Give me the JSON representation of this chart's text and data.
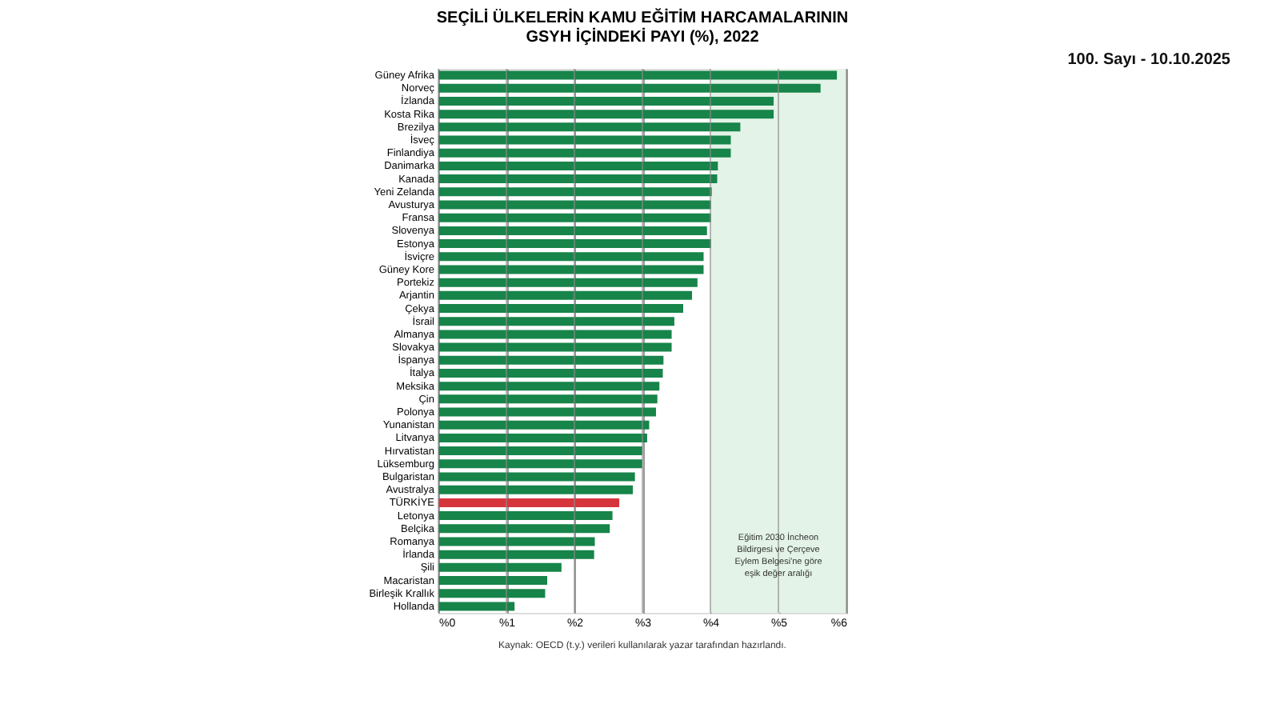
{
  "chart_data": {
    "type": "bar",
    "orientation": "horizontal",
    "title": [
      "SEÇİLİ ÜLKELERİN KAMU EĞİTİM HARCAMALARININ",
      "GSYH İÇİNDEKİ PAYI (%), 2022"
    ],
    "categories": [
      "Güney Afrika",
      "Norveç",
      "İzlanda",
      "Kosta Rika",
      "Brezilya",
      "İsveç",
      "Finlandiya",
      "Danimarka",
      "Kanada",
      "Yeni Zelanda",
      "Avusturya",
      "Fransa",
      "Slovenya",
      "Estonya",
      "İsviçre",
      "Güney Kore",
      "Portekiz",
      "Arjantin",
      "Çekya",
      "İsrail",
      "Almanya",
      "Slovakya",
      "İspanya",
      "İtalya",
      "Meksika",
      "Çin",
      "Polonya",
      "Yunanistan",
      "Litvanya",
      "Hırvatistan",
      "Lüksemburg",
      "Bulgaristan",
      "Avustralya",
      "TÜRKİYE",
      "Letonya",
      "Belçika",
      "Romanya",
      "İrlanda",
      "Şili",
      "Macaristan",
      "Birleşik Krallık",
      "Hollanda"
    ],
    "values": [
      5.86,
      5.62,
      4.93,
      4.93,
      4.44,
      4.3,
      4.3,
      4.11,
      4.1,
      4.02,
      4.01,
      4.01,
      3.95,
      4.01,
      3.9,
      3.9,
      3.81,
      3.73,
      3.6,
      3.47,
      3.43,
      3.43,
      3.31,
      3.3,
      3.25,
      3.22,
      3.2,
      3.1,
      3.07,
      3.0,
      3.0,
      2.89,
      2.86,
      2.66,
      2.56,
      2.52,
      2.3,
      2.29,
      1.81,
      1.6,
      1.57,
      1.12
    ],
    "colors": [
      "#17844a",
      "#17844a",
      "#17844a",
      "#17844a",
      "#17844a",
      "#17844a",
      "#17844a",
      "#17844a",
      "#17844a",
      "#17844a",
      "#17844a",
      "#17844a",
      "#17844a",
      "#17844a",
      "#17844a",
      "#17844a",
      "#17844a",
      "#17844a",
      "#17844a",
      "#17844a",
      "#17844a",
      "#17844a",
      "#17844a",
      "#17844a",
      "#17844a",
      "#17844a",
      "#17844a",
      "#17844a",
      "#17844a",
      "#17844a",
      "#17844a",
      "#17844a",
      "#17844a",
      "#d7353c",
      "#17844a",
      "#17844a",
      "#17844a",
      "#17844a",
      "#17844a",
      "#17844a",
      "#17844a",
      "#17844a"
    ],
    "xlim": [
      0,
      6
    ],
    "xticks": [
      {
        "value": 0,
        "label": "%0"
      },
      {
        "value": 1,
        "label": "%1"
      },
      {
        "value": 2,
        "label": "%2"
      },
      {
        "value": 3,
        "label": "%3"
      },
      {
        "value": 4,
        "label": "%4"
      },
      {
        "value": 5,
        "label": "%5"
      },
      {
        "value": 6,
        "label": "%6"
      }
    ],
    "grid": "x",
    "bands": [
      {
        "axis": "x",
        "from": 4,
        "to": 6,
        "label": "Eğitim 2030 İncheon\nBildirgesi ve Çerçeve\nEylem Belgesi'ne göre\neşik değer aralığı",
        "color": "#e3f3e7"
      }
    ],
    "annotations": [
      "Kaynak: OECD (t.y.) verileri kullanılarak yazar tarafından hazırlandı.",
      "100. Sayı - 10.10.2025"
    ]
  }
}
